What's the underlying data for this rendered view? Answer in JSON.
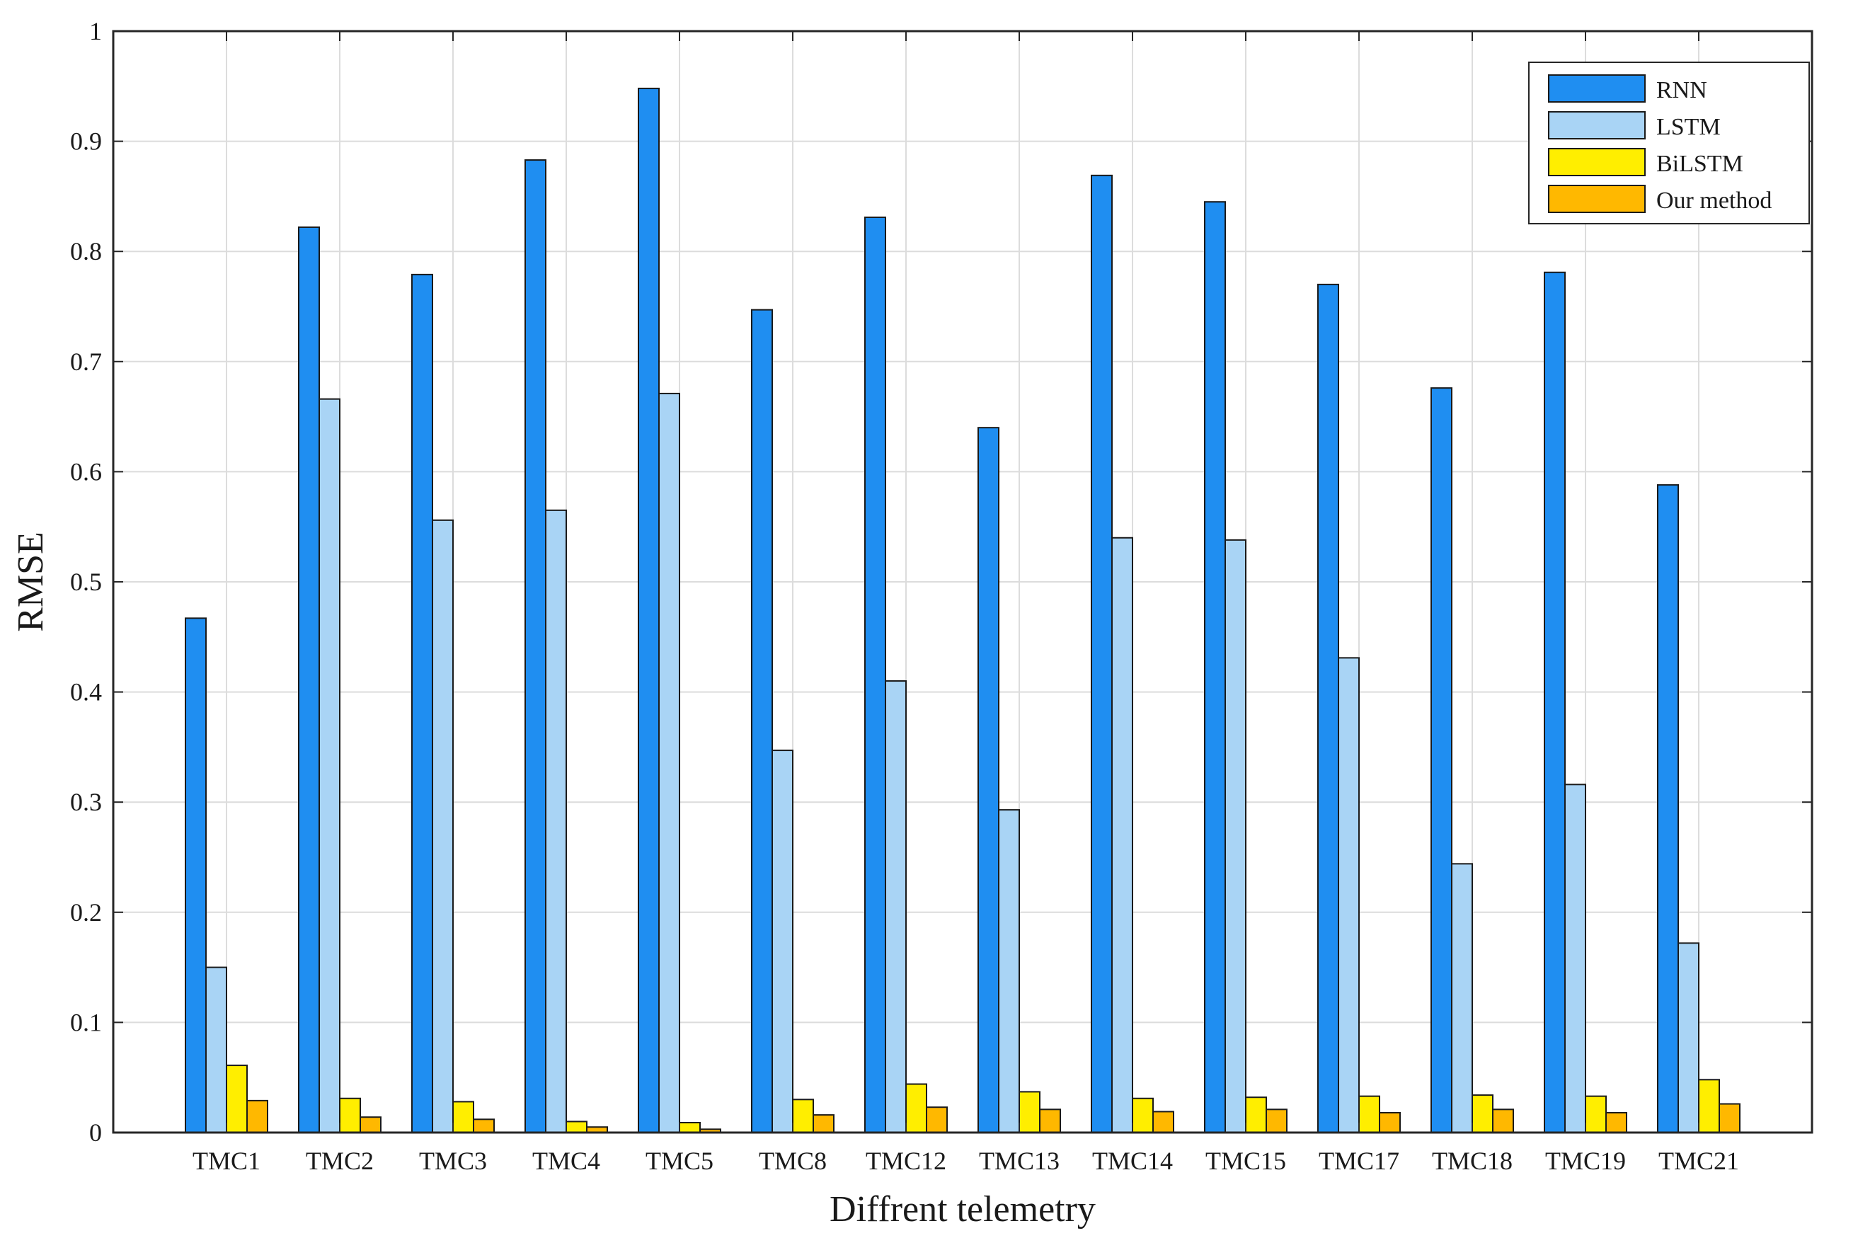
{
  "chart_data": {
    "type": "bar",
    "title": "",
    "xlabel": "Diffrent telemetry",
    "ylabel": "RMSE",
    "ylim": [
      0,
      1
    ],
    "yticks": [
      0,
      0.1,
      0.2,
      0.3,
      0.4,
      0.5,
      0.6,
      0.7,
      0.8,
      0.9,
      1
    ],
    "ytick_labels": [
      "0",
      "0.1",
      "0.2",
      "0.3",
      "0.4",
      "0.5",
      "0.6",
      "0.7",
      "0.8",
      "0.9",
      "1"
    ],
    "grid": true,
    "legend_position": "top-right",
    "categories": [
      "TMC1",
      "TMC2",
      "TMC3",
      "TMC4",
      "TMC5",
      "TMC8",
      "TMC12",
      "TMC13",
      "TMC14",
      "TMC15",
      "TMC17",
      "TMC18",
      "TMC19",
      "TMC21"
    ],
    "series": [
      {
        "name": "RNN",
        "color": "#1f8ef1",
        "values": [
          0.467,
          0.822,
          0.779,
          0.883,
          0.948,
          0.747,
          0.831,
          0.64,
          0.869,
          0.845,
          0.77,
          0.676,
          0.781,
          0.588
        ]
      },
      {
        "name": "LSTM",
        "color": "#a9d4f5",
        "values": [
          0.15,
          0.666,
          0.556,
          0.565,
          0.671,
          0.347,
          0.41,
          0.293,
          0.54,
          0.538,
          0.431,
          0.244,
          0.316,
          0.172
        ]
      },
      {
        "name": "BiLSTM",
        "color": "#ffee00",
        "values": [
          0.061,
          0.031,
          0.028,
          0.01,
          0.009,
          0.03,
          0.044,
          0.037,
          0.031,
          0.032,
          0.033,
          0.034,
          0.033,
          0.048
        ]
      },
      {
        "name": "Our method",
        "color": "#ffb800",
        "values": [
          0.029,
          0.014,
          0.012,
          0.005,
          0.003,
          0.016,
          0.023,
          0.021,
          0.019,
          0.021,
          0.018,
          0.021,
          0.018,
          0.026
        ]
      }
    ]
  }
}
